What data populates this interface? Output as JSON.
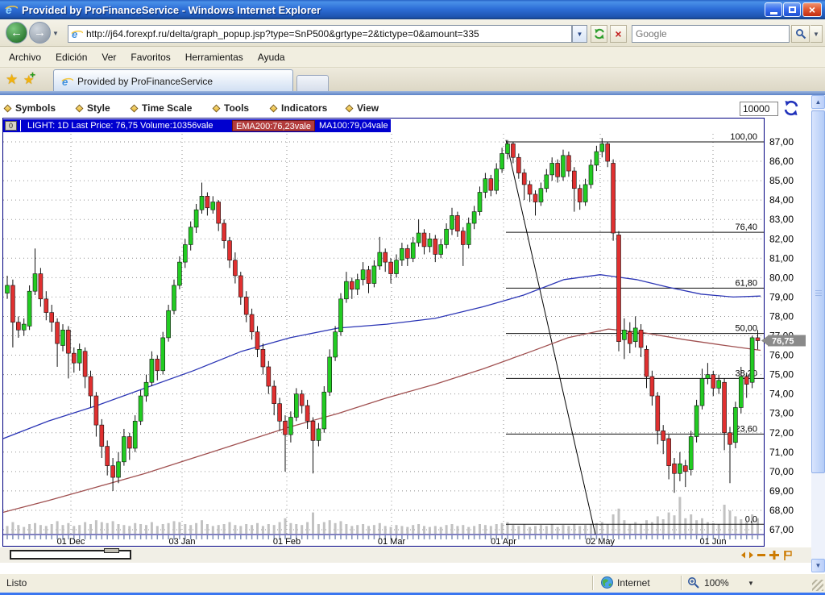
{
  "window": {
    "title": "Provided by ProFinanceService - Windows Internet Explorer"
  },
  "nav": {
    "url": "http://j64.forexpf.ru/delta/graph_popup.jsp?type=SnP500&grtype=2&tictype=0&amount=335",
    "search_placeholder": "Google"
  },
  "menu": {
    "items": [
      "Archivo",
      "Edición",
      "Ver",
      "Favoritos",
      "Herramientas",
      "Ayuda"
    ]
  },
  "tabs": {
    "active": "Provided by ProFinanceService"
  },
  "applet": {
    "toolbar": {
      "items": [
        "Symbols",
        "Style",
        "Time Scale",
        "Tools",
        "Indicators",
        "View"
      ],
      "amount_value": "10000"
    },
    "legend": {
      "button": "0",
      "main": "LIGHT: 1D Last Price: 76,75 Volume:10356vale",
      "ema": "EMA200:76,23vale",
      "ma": "MA100:79,04vale"
    }
  },
  "status": {
    "left": "Listo",
    "zone": "Internet",
    "zoom": "100%"
  },
  "chart_data": {
    "type": "candlestick",
    "symbol": "LIGHT",
    "interval": "1D",
    "last_price": 76.75,
    "volume_label": 10356,
    "x_start": 9,
    "x_step": 6.9,
    "y_axis": {
      "min": 67,
      "max": 87,
      "step": 1,
      "labels": [
        "87,00",
        "86,00",
        "85,00",
        "84,00",
        "83,00",
        "82,00",
        "81,00",
        "80,00",
        "79,00",
        "78,00",
        "77,00",
        "76,00",
        "75,00",
        "74,00",
        "73,00",
        "72,00",
        "71,00",
        "70,00",
        "69,00",
        "68,00",
        "67,00"
      ]
    },
    "x_axis": {
      "ticks": [
        {
          "label": "01 Dec",
          "x": 88
        },
        {
          "label": "03 Jan",
          "x": 226
        },
        {
          "label": "01 Feb",
          "x": 356
        },
        {
          "label": "01 Mar",
          "x": 486
        },
        {
          "label": "01 Apr",
          "x": 625
        },
        {
          "label": "02 May",
          "x": 745
        },
        {
          "label": "01 Jun",
          "x": 885
        }
      ]
    },
    "fib_levels": [
      {
        "label": "100,00",
        "price": 87.0
      },
      {
        "label": "76,40",
        "price": 82.34
      },
      {
        "label": "61,80",
        "price": 79.46
      },
      {
        "label": "50,00",
        "price": 77.12
      },
      {
        "label": "38,20",
        "price": 74.8
      },
      {
        "label": "23,60",
        "price": 71.93
      },
      {
        "label": "0,0",
        "price": 67.28
      }
    ],
    "trend_line": {
      "x1": 628,
      "price1": 87.1,
      "x2": 739,
      "price2": 66.75
    },
    "price_tag": "76,75",
    "price_tag_value": 76.75,
    "series": [
      {
        "name": "MA100",
        "color": "#2b35b5",
        "points": [
          [
            4,
            71.7
          ],
          [
            60,
            72.6
          ],
          [
            120,
            73.4
          ],
          [
            180,
            74.3
          ],
          [
            240,
            75.2
          ],
          [
            300,
            76.2
          ],
          [
            360,
            76.9
          ],
          [
            420,
            77.4
          ],
          [
            480,
            77.6
          ],
          [
            540,
            77.9
          ],
          [
            600,
            78.5
          ],
          [
            650,
            79.1
          ],
          [
            700,
            79.9
          ],
          [
            745,
            80.15
          ],
          [
            790,
            79.9
          ],
          [
            830,
            79.5
          ],
          [
            870,
            79.15
          ],
          [
            910,
            79.0
          ],
          [
            944,
            79.05
          ]
        ]
      },
      {
        "name": "EMA200",
        "color": "#a05050",
        "points": [
          [
            4,
            67.9
          ],
          [
            60,
            68.5
          ],
          [
            120,
            69.2
          ],
          [
            180,
            69.9
          ],
          [
            240,
            70.7
          ],
          [
            300,
            71.5
          ],
          [
            360,
            72.3
          ],
          [
            420,
            73.0
          ],
          [
            480,
            73.8
          ],
          [
            540,
            74.5
          ],
          [
            600,
            75.3
          ],
          [
            660,
            76.2
          ],
          [
            705,
            76.9
          ],
          [
            755,
            77.35
          ],
          [
            800,
            77.15
          ],
          [
            850,
            76.8
          ],
          [
            900,
            76.5
          ],
          [
            944,
            76.25
          ]
        ]
      }
    ],
    "candles": [
      [
        79.2,
        80.1,
        78.9,
        79.6
      ],
      [
        79.6,
        79.9,
        76.4,
        77.7
      ],
      [
        77.7,
        78.0,
        76.9,
        77.3
      ],
      [
        77.3,
        77.9,
        77.0,
        77.6
      ],
      [
        77.5,
        79.6,
        77.3,
        79.3
      ],
      [
        79.3,
        81.5,
        79.1,
        80.2
      ],
      [
        80.2,
        80.5,
        78.5,
        78.9
      ],
      [
        78.9,
        79.3,
        77.8,
        78.2
      ],
      [
        78.2,
        78.6,
        77.2,
        77.7
      ],
      [
        77.7,
        77.9,
        75.4,
        76.6
      ],
      [
        76.5,
        77.6,
        76.2,
        77.3
      ],
      [
        77.3,
        77.5,
        74.8,
        76.1
      ],
      [
        76.1,
        76.4,
        75.1,
        75.6
      ],
      [
        75.6,
        76.6,
        75.2,
        76.3
      ],
      [
        76.2,
        76.4,
        74.3,
        74.9
      ],
      [
        74.9,
        75.2,
        73.3,
        73.9
      ],
      [
        73.9,
        74.1,
        71.8,
        72.4
      ],
      [
        72.4,
        72.7,
        70.7,
        71.3
      ],
      [
        71.3,
        71.6,
        69.8,
        70.3
      ],
      [
        70.3,
        70.7,
        69.0,
        69.7
      ],
      [
        69.7,
        71.0,
        69.4,
        70.5
      ],
      [
        70.5,
        72.2,
        70.3,
        71.8
      ],
      [
        71.8,
        72.0,
        70.6,
        71.2
      ],
      [
        71.2,
        72.9,
        71.0,
        72.6
      ],
      [
        72.6,
        74.2,
        72.4,
        73.9
      ],
      [
        73.9,
        75.0,
        73.6,
        74.6
      ],
      [
        74.6,
        76.2,
        74.4,
        75.8
      ],
      [
        75.8,
        76.0,
        74.7,
        75.2
      ],
      [
        75.2,
        77.2,
        75.0,
        76.9
      ],
      [
        76.9,
        78.6,
        76.7,
        78.3
      ],
      [
        78.3,
        79.9,
        78.1,
        79.6
      ],
      [
        79.6,
        81.1,
        79.4,
        80.8
      ],
      [
        80.8,
        82.0,
        80.5,
        81.7
      ],
      [
        81.7,
        82.9,
        81.4,
        82.6
      ],
      [
        82.6,
        83.8,
        82.3,
        83.5
      ],
      [
        83.5,
        84.9,
        83.3,
        84.2
      ],
      [
        84.2,
        84.4,
        83.2,
        83.6
      ],
      [
        83.5,
        84.2,
        83.3,
        83.9
      ],
      [
        83.9,
        84.0,
        82.4,
        82.8
      ],
      [
        82.8,
        83.0,
        81.5,
        81.9
      ],
      [
        81.9,
        82.1,
        80.5,
        80.9
      ],
      [
        80.9,
        81.3,
        79.7,
        80.1
      ],
      [
        80.1,
        80.3,
        78.6,
        79.0
      ],
      [
        79.0,
        79.3,
        77.7,
        78.1
      ],
      [
        78.1,
        78.4,
        76.8,
        77.2
      ],
      [
        77.2,
        77.5,
        75.9,
        76.3
      ],
      [
        76.3,
        76.6,
        75.0,
        75.4
      ],
      [
        75.4,
        75.7,
        74.0,
        74.4
      ],
      [
        74.4,
        74.7,
        72.9,
        73.5
      ],
      [
        73.5,
        73.8,
        72.1,
        72.6
      ],
      [
        72.6,
        72.9,
        70.0,
        71.9
      ],
      [
        71.9,
        73.1,
        71.5,
        72.8
      ],
      [
        72.8,
        74.3,
        72.6,
        74.0
      ],
      [
        74.0,
        74.2,
        73.0,
        73.4
      ],
      [
        73.4,
        73.7,
        72.2,
        72.6
      ],
      [
        72.6,
        72.8,
        69.9,
        71.6
      ],
      [
        71.6,
        72.5,
        71.3,
        72.2
      ],
      [
        72.2,
        74.4,
        72.0,
        74.1
      ],
      [
        74.1,
        76.3,
        73.9,
        75.9
      ],
      [
        75.9,
        77.5,
        75.7,
        77.2
      ],
      [
        77.2,
        79.2,
        77.0,
        78.9
      ],
      [
        78.9,
        80.3,
        78.7,
        79.8
      ],
      [
        79.8,
        80.0,
        78.9,
        79.4
      ],
      [
        79.4,
        80.2,
        79.1,
        79.9
      ],
      [
        79.9,
        80.8,
        79.6,
        80.4
      ],
      [
        80.4,
        80.6,
        79.2,
        79.7
      ],
      [
        79.7,
        80.9,
        79.5,
        80.6
      ],
      [
        80.6,
        82.1,
        80.4,
        81.3
      ],
      [
        81.3,
        81.5,
        80.3,
        80.8
      ],
      [
        80.8,
        81.0,
        79.7,
        80.2
      ],
      [
        80.2,
        81.2,
        80.0,
        80.9
      ],
      [
        80.9,
        81.8,
        80.6,
        81.5
      ],
      [
        81.5,
        81.7,
        80.6,
        81.0
      ],
      [
        81.0,
        82.1,
        80.8,
        81.8
      ],
      [
        81.8,
        83.0,
        81.6,
        82.3
      ],
      [
        82.3,
        82.5,
        81.2,
        81.6
      ],
      [
        81.6,
        82.3,
        81.3,
        82.0
      ],
      [
        82.0,
        82.2,
        80.8,
        81.2
      ],
      [
        81.2,
        82.0,
        81.0,
        81.7
      ],
      [
        81.7,
        82.8,
        81.5,
        82.5
      ],
      [
        82.5,
        83.6,
        82.2,
        83.2
      ],
      [
        83.2,
        83.4,
        82.1,
        82.4
      ],
      [
        82.4,
        82.6,
        80.6,
        81.7
      ],
      [
        81.7,
        83.1,
        81.5,
        82.8
      ],
      [
        82.8,
        83.7,
        82.5,
        83.4
      ],
      [
        83.4,
        84.7,
        83.2,
        84.4
      ],
      [
        84.4,
        85.4,
        84.1,
        85.1
      ],
      [
        85.1,
        85.3,
        84.2,
        84.5
      ],
      [
        84.5,
        85.9,
        84.3,
        85.6
      ],
      [
        85.6,
        86.7,
        85.4,
        86.4
      ],
      [
        86.4,
        87.1,
        86.1,
        86.9
      ],
      [
        86.9,
        87.0,
        85.9,
        86.2
      ],
      [
        86.2,
        86.4,
        85.1,
        85.4
      ],
      [
        85.4,
        85.6,
        84.0,
        84.8
      ],
      [
        84.8,
        85.0,
        83.9,
        84.3
      ],
      [
        84.3,
        84.5,
        83.2,
        83.9
      ],
      [
        83.9,
        84.9,
        83.7,
        84.6
      ],
      [
        84.6,
        85.6,
        84.4,
        85.3
      ],
      [
        85.3,
        86.2,
        85.0,
        85.9
      ],
      [
        85.9,
        86.1,
        84.9,
        85.2
      ],
      [
        85.2,
        86.6,
        85.0,
        86.3
      ],
      [
        86.3,
        86.5,
        85.2,
        85.5
      ],
      [
        85.5,
        85.7,
        83.4,
        84.6
      ],
      [
        84.6,
        84.8,
        83.5,
        83.9
      ],
      [
        83.9,
        85.1,
        83.7,
        84.8
      ],
      [
        84.8,
        86.1,
        84.6,
        85.8
      ],
      [
        85.8,
        86.8,
        85.5,
        86.5
      ],
      [
        86.5,
        87.2,
        86.2,
        86.9
      ],
      [
        86.9,
        87.0,
        85.7,
        86.0
      ],
      [
        85.9,
        86.1,
        81.9,
        82.3
      ],
      [
        82.2,
        82.4,
        76.2,
        76.7
      ],
      [
        76.8,
        77.9,
        75.8,
        77.3
      ],
      [
        77.2,
        77.7,
        76.1,
        76.6
      ],
      [
        76.7,
        78.0,
        76.4,
        77.4
      ],
      [
        77.3,
        77.6,
        75.9,
        76.4
      ],
      [
        76.3,
        76.5,
        74.3,
        74.9
      ],
      [
        74.9,
        75.2,
        73.4,
        73.9
      ],
      [
        73.9,
        74.1,
        71.4,
        72.1
      ],
      [
        72.1,
        72.4,
        70.9,
        71.6
      ],
      [
        71.7,
        71.9,
        69.6,
        70.3
      ],
      [
        70.4,
        70.7,
        68.9,
        69.9
      ],
      [
        69.9,
        71.0,
        69.5,
        70.4
      ],
      [
        70.3,
        70.6,
        69.2,
        70.0
      ],
      [
        70.1,
        72.1,
        69.8,
        71.8
      ],
      [
        71.8,
        73.7,
        71.5,
        73.4
      ],
      [
        73.4,
        75.3,
        73.2,
        74.8
      ],
      [
        74.8,
        75.6,
        74.5,
        75.0
      ],
      [
        75.0,
        75.2,
        73.9,
        74.3
      ],
      [
        74.3,
        75.0,
        74.0,
        74.7
      ],
      [
        74.6,
        74.8,
        71.1,
        72.0
      ],
      [
        72.0,
        72.3,
        69.4,
        71.4
      ],
      [
        71.5,
        73.6,
        71.2,
        73.3
      ],
      [
        73.3,
        75.4,
        73.0,
        74.9
      ],
      [
        74.9,
        75.1,
        73.8,
        74.5
      ],
      [
        74.6,
        77.0,
        74.3,
        76.9
      ],
      [
        76.9,
        77.3,
        76.3,
        76.75
      ]
    ],
    "volume": [
      8,
      12,
      9,
      7,
      10,
      11,
      9,
      8,
      10,
      13,
      9,
      11,
      8,
      9,
      12,
      10,
      14,
      12,
      11,
      13,
      10,
      9,
      8,
      11,
      10,
      9,
      12,
      8,
      10,
      11,
      13,
      12,
      10,
      9,
      11,
      14,
      10,
      8,
      9,
      10,
      12,
      9,
      8,
      10,
      9,
      11,
      8,
      10,
      9,
      12,
      16,
      11,
      10,
      9,
      12,
      22,
      10,
      12,
      14,
      11,
      13,
      10,
      8,
      9,
      10,
      8,
      9,
      11,
      8,
      7,
      9,
      8,
      7,
      9,
      10,
      8,
      7,
      8,
      7,
      9,
      10,
      8,
      9,
      7,
      8,
      10,
      9,
      8,
      10,
      11,
      12,
      9,
      8,
      10,
      7,
      8,
      9,
      8,
      10,
      7,
      9,
      8,
      10,
      8,
      9,
      10,
      11,
      12,
      10,
      20,
      26,
      14,
      10,
      12,
      10,
      14,
      12,
      18,
      15,
      22,
      19,
      38,
      16,
      20,
      14,
      16,
      12,
      11,
      10,
      30,
      24,
      18,
      15,
      12,
      20,
      16
    ],
    "colors": {
      "up": "#22cc22",
      "down": "#e03030",
      "volume": "#c2c2c2",
      "grid": "#909090",
      "border": "#000080"
    },
    "legend_position": "top-left",
    "grid": true
  }
}
